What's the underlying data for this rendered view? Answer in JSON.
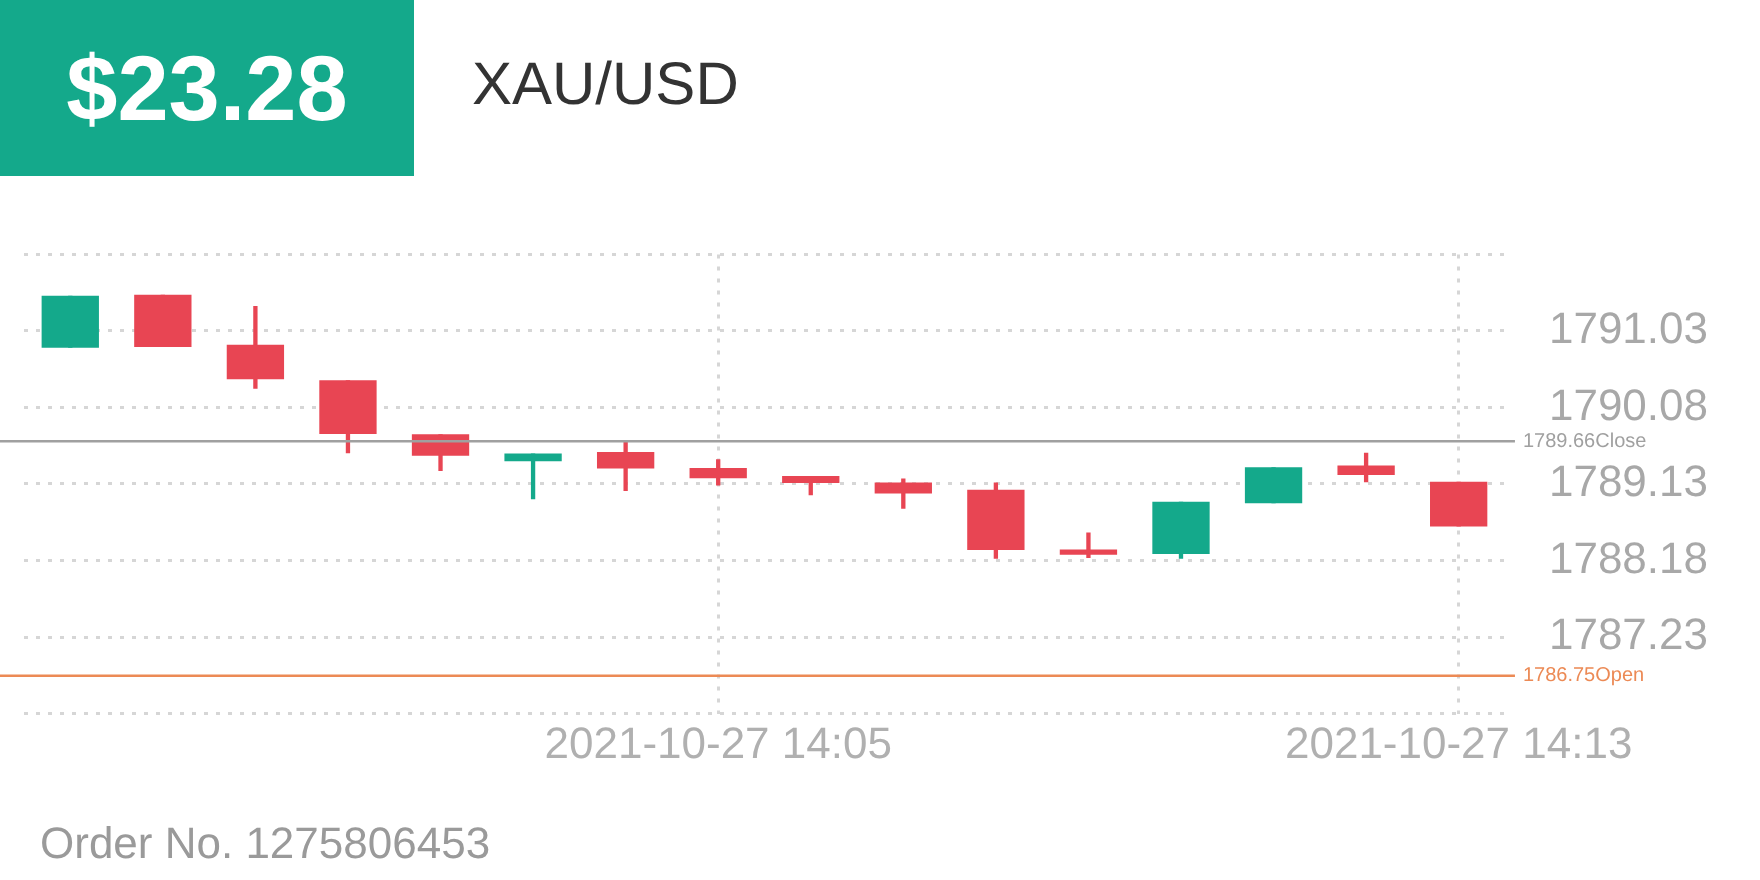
{
  "chart_data": {
    "type": "candlestick",
    "title": "XAU/USD",
    "annotations": [
      "$23.28",
      "Order No. 1275806453"
    ],
    "categories": [
      null,
      null,
      null,
      null,
      null,
      null,
      null,
      "2021-10-27 14:05",
      null,
      null,
      null,
      null,
      null,
      null,
      null,
      "2021-10-27 14:13"
    ],
    "ohlc": [
      [
        1790.83,
        1791.46,
        1790.83,
        1791.46
      ],
      [
        1791.47,
        1791.47,
        1790.84,
        1790.84
      ],
      [
        1790.85,
        1791.33,
        1790.32,
        1790.44
      ],
      [
        1790.41,
        1790.41,
        1789.52,
        1789.76
      ],
      [
        1789.74,
        1789.74,
        1789.3,
        1789.49
      ],
      [
        1789.42,
        1789.5,
        1788.95,
        1789.5
      ],
      [
        1789.52,
        1789.65,
        1789.05,
        1789.33
      ],
      [
        1789.32,
        1789.43,
        1789.12,
        1789.21
      ],
      [
        1789.22,
        1789.22,
        1789.0,
        1789.15
      ],
      [
        1789.14,
        1789.19,
        1788.83,
        1789.02
      ],
      [
        1789.05,
        1789.14,
        1788.21,
        1788.32
      ],
      [
        1788.31,
        1788.52,
        1788.22,
        1788.26
      ],
      [
        1788.27,
        1788.9,
        1788.21,
        1788.9
      ],
      [
        1788.9,
        1789.33,
        1788.9,
        1789.33
      ],
      [
        1789.35,
        1789.51,
        1789.16,
        1789.25
      ],
      [
        1789.15,
        1789.15,
        1788.61,
        1788.61
      ]
    ],
    "colors": [
      "#14a98b",
      "#e84553",
      "#e84553",
      "#e84553",
      "#e84553",
      "#14a98b",
      "#e84553",
      "#e84553",
      "#e84553",
      "#e84553",
      "#e84553",
      "#e84553",
      "#14a98b",
      "#14a98b",
      "#e84553",
      "#e84553"
    ],
    "ylim": [
      1786.28,
      1791.98
    ],
    "yticks": [
      {
        "value": 1786.28,
        "label": null
      },
      1787.23,
      1788.18,
      1789.13,
      1790.08,
      1791.03,
      {
        "value": 1791.98,
        "label": null
      }
    ],
    "ref_lines": [
      {
        "axis": "y",
        "value": 1789.66,
        "label": "1789.66Close",
        "color": "#a0a0a0"
      },
      {
        "axis": "y",
        "value": 1786.75,
        "label": "1786.75Open",
        "color": "#ec8a55"
      }
    ],
    "grid": true,
    "legend": false
  }
}
